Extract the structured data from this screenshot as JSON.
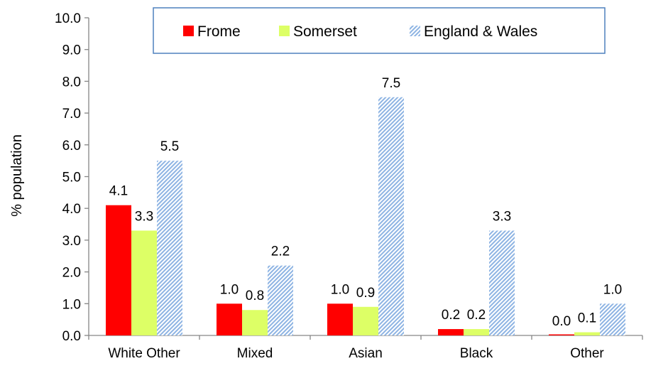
{
  "chart_data": {
    "type": "bar",
    "categories": [
      "White Other",
      "Mixed",
      "Asian",
      "Black",
      "Other"
    ],
    "series": [
      {
        "name": "Frome",
        "values": [
          4.1,
          1.0,
          1.0,
          0.2,
          0.0
        ],
        "labels": [
          "4.1",
          "1.0",
          "1.0",
          "0.2",
          "0.0"
        ],
        "color": "#ff0000",
        "pattern": "solid"
      },
      {
        "name": "Somerset",
        "values": [
          3.3,
          0.8,
          0.9,
          0.2,
          0.1
        ],
        "labels": [
          "3.3",
          "0.8",
          "0.9",
          "0.2",
          "0.1"
        ],
        "color": "#ddff66",
        "pattern": "solid"
      },
      {
        "name": "England & Wales",
        "values": [
          5.5,
          2.2,
          7.5,
          3.3,
          1.0
        ],
        "labels": [
          "5.5",
          "2.2",
          "7.5",
          "3.3",
          "1.0"
        ],
        "color": "#8eb4e3",
        "pattern": "diagonal-hatch"
      }
    ],
    "ylabel": "% population",
    "xlabel": "",
    "ylim": [
      0,
      10
    ],
    "yticks": [
      "0.0",
      "1.0",
      "2.0",
      "3.0",
      "4.0",
      "5.0",
      "6.0",
      "7.0",
      "8.0",
      "9.0",
      "10.0"
    ],
    "grid": false,
    "legend_position": "top-right"
  }
}
